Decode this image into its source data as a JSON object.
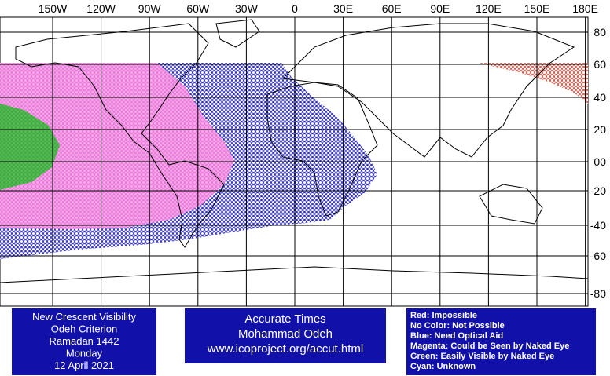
{
  "lon_labels": [
    "150W",
    "120W",
    "90W",
    "60W",
    "30W",
    "0",
    "30E",
    "60E",
    "90E",
    "120E",
    "150E",
    "180E"
  ],
  "lat_labels": [
    "80",
    "60",
    "40",
    "20",
    "00",
    "-20",
    "-40",
    "-60",
    "-80"
  ],
  "info_box": {
    "lines": [
      "New Crescent Visibility",
      "Odeh Criterion",
      "Ramadan 1442",
      "Monday",
      "12 April 2021"
    ]
  },
  "credit_box": {
    "lines": [
      "Accurate Times",
      "Mohammad Odeh",
      "www.icoproject.org/accut.html"
    ]
  },
  "legend": {
    "lines": [
      "Red: Impossible",
      "No Color: Not Possible",
      "Blue: Need Optical Aid",
      "Magenta: Could be Seen by Naked Eye",
      "Green: Easily Visible by Naked Eye",
      "Cyan: Unknown"
    ]
  }
}
